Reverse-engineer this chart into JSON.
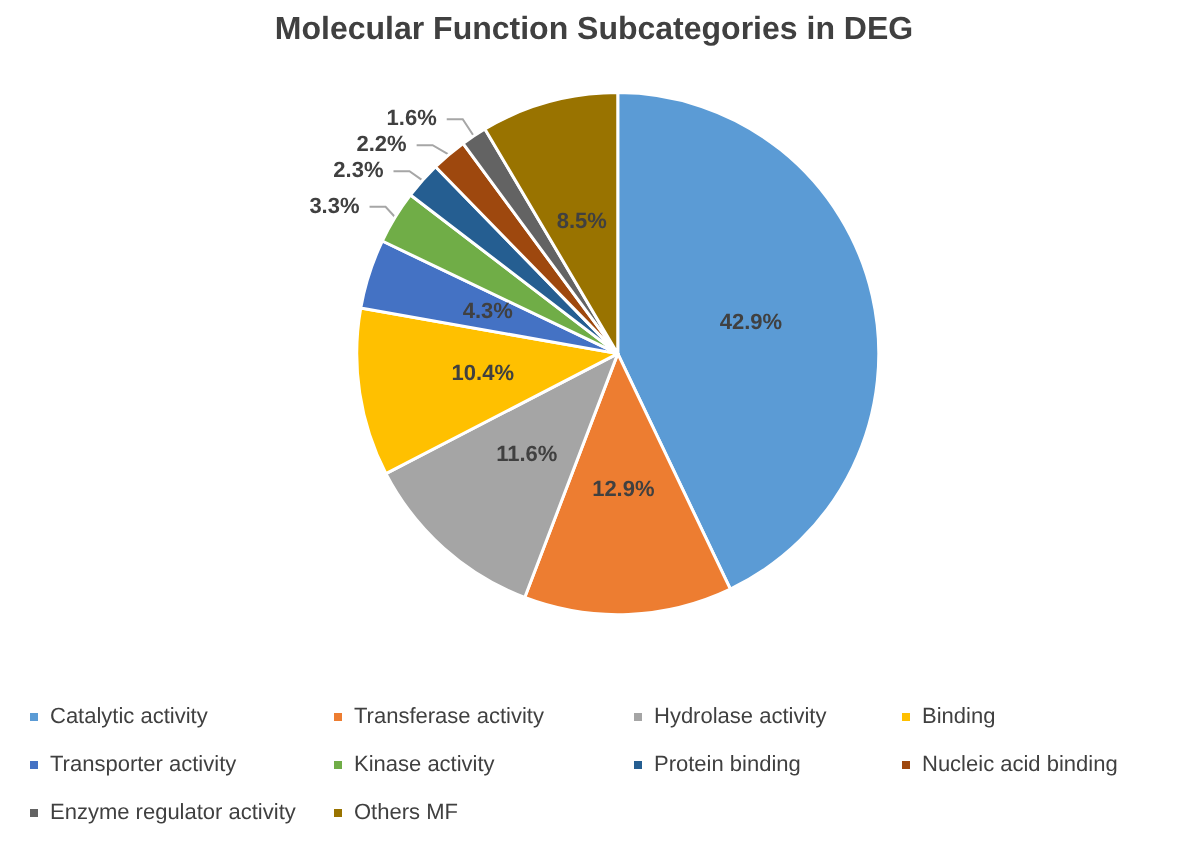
{
  "chart_data": {
    "type": "pie",
    "title": "Molecular Function Subcategories in DEG",
    "categories": [
      "Catalytic activity",
      "Transferase activity",
      "Hydrolase activity",
      "Binding",
      "Transporter activity",
      "Kinase activity",
      "Protein binding",
      "Nucleic acid binding",
      "Enzyme regulator activity",
      "Others MF"
    ],
    "values": [
      42.9,
      12.9,
      11.6,
      10.4,
      4.3,
      3.3,
      2.3,
      2.2,
      1.6,
      8.5
    ],
    "colors": [
      "#5b9bd5",
      "#ed7d31",
      "#a5a5a5",
      "#ffc000",
      "#4472c4",
      "#70ad47",
      "#255e91",
      "#9e480e",
      "#636363",
      "#997300"
    ],
    "value_labels": [
      "42.9%",
      "12.9%",
      "11.6%",
      "10.4%",
      "4.3%",
      "3.3%",
      "2.3%",
      "2.2%",
      "1.6%",
      "8.5%"
    ],
    "legend": "bottom"
  }
}
